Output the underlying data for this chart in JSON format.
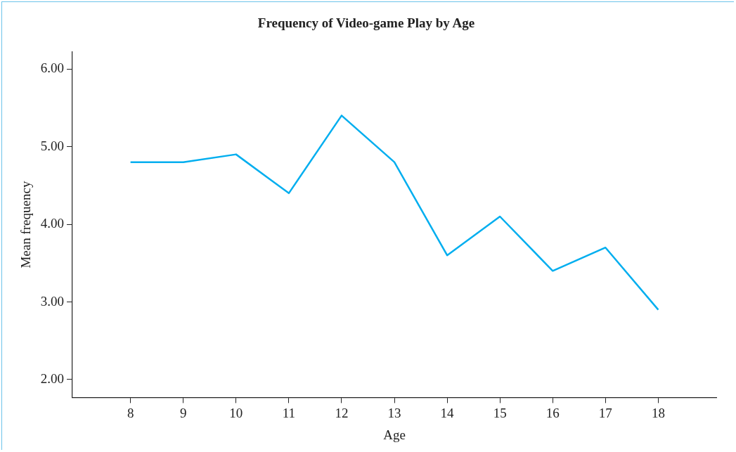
{
  "chart_data": {
    "type": "line",
    "title": "Frequency of Video-game Play by Age",
    "xlabel": "Age",
    "ylabel": "Mean frequency",
    "x": [
      8,
      9,
      10,
      11,
      12,
      13,
      14,
      15,
      16,
      17,
      18
    ],
    "series": [
      {
        "color": "#00aeef",
        "values": [
          4.8,
          4.8,
          4.9,
          4.4,
          5.4,
          4.8,
          3.6,
          4.1,
          3.4,
          3.7,
          2.9
        ]
      }
    ],
    "xlim": [
      6.9,
      19.1
    ],
    "xticks": [
      8,
      9,
      10,
      11,
      12,
      13,
      14,
      15,
      16,
      17,
      18
    ],
    "ylim": [
      1.77,
      6.22
    ],
    "yticks": [
      {
        "value": 2,
        "label": "2.00"
      },
      {
        "value": 3,
        "label": "3.00"
      },
      {
        "value": 4,
        "label": "4.00"
      },
      {
        "value": 5,
        "label": "5.00"
      },
      {
        "value": 6,
        "label": "6.00"
      }
    ],
    "grid": false,
    "legend": false,
    "marker": "none",
    "line_style": "solid"
  }
}
